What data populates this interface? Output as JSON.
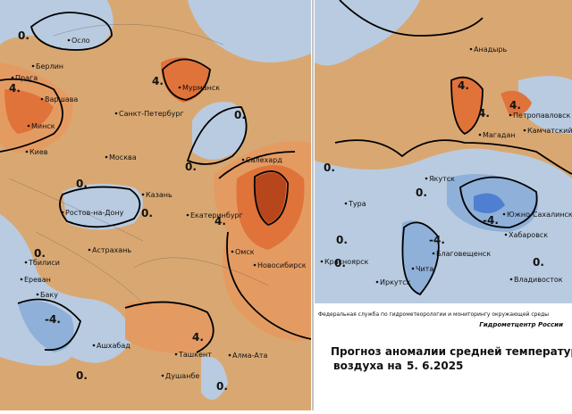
{
  "cities": [
    "Осло",
    "Берлин",
    "Прага",
    "Варшава",
    "Мурманск",
    "Санкт-Петербург",
    "Минск",
    "Киев",
    "Москва",
    "Салехард",
    "Казань",
    "Ростов-на-Дону",
    "Екатеринбург",
    "Астрахань",
    "Омск",
    "Тбилиси",
    "Новосибирск",
    "Ереван",
    "Баку",
    "Ашхабад",
    "Ташкент",
    "Алма-Ата",
    "Душанбе",
    "Анадырь",
    "Петропавловск",
    "Магадан",
    "Камчатский",
    "Якутск",
    "Тура",
    "Южно-Сахалинск",
    "Хабаровск",
    "Благовещенск",
    "Красноярск",
    "Чита",
    "Иркутск",
    "Владивосток"
  ],
  "contour_labels": [
    "0.",
    "4.",
    "4.",
    "0.",
    "0.",
    "0.",
    "0.",
    "4.",
    "0.",
    "-4.",
    "4.",
    "0.",
    "0.",
    "4.",
    "4.",
    "4.",
    "0.",
    "0.",
    "-4.",
    "-4.",
    "0.",
    "0.",
    "0."
  ],
  "footer": {
    "agency": "Федеральная служба по гидрометеорологии и мониторингу окружающей среды",
    "center": "Гидрометцентр России",
    "title": "Прогноз аномалии средней температуры",
    "subtitle": "воздуха на",
    "date": "5. 6.2025"
  }
}
